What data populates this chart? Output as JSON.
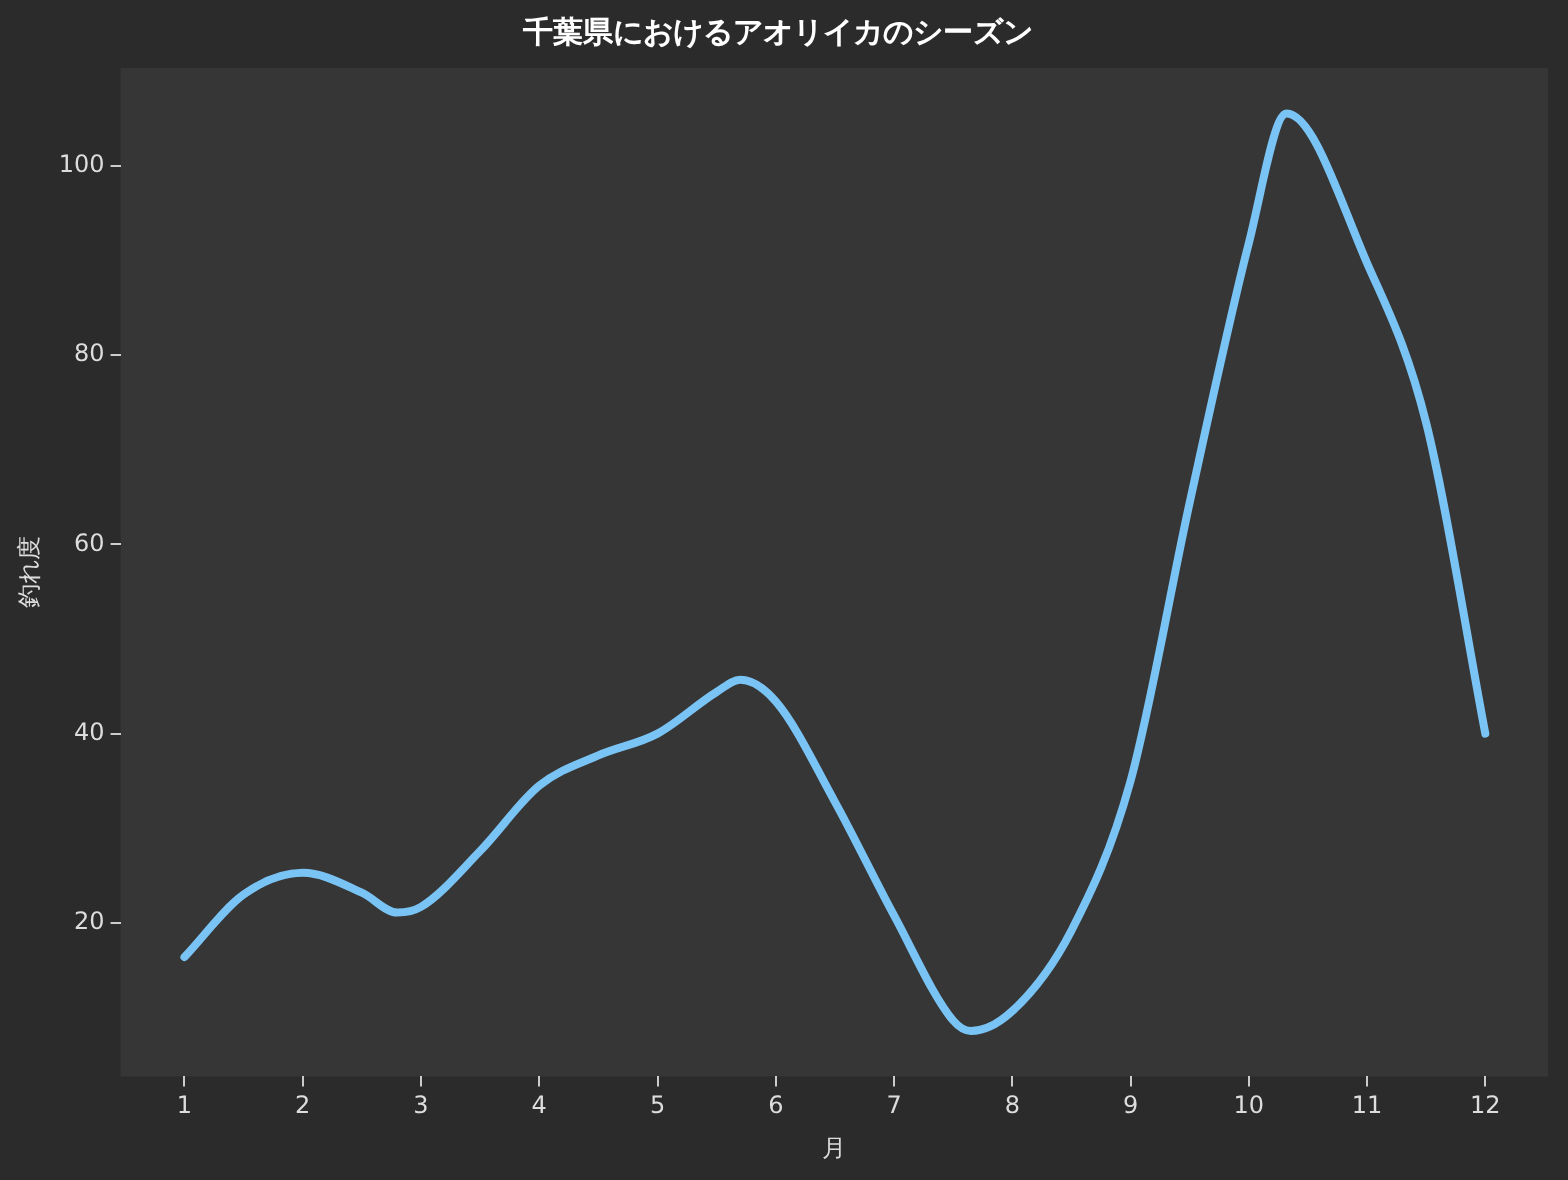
{
  "chart_data": {
    "type": "line",
    "title": "千葉県におけるアオリイカのシーズン",
    "xlabel": "月",
    "ylabel": "釣れ度",
    "x": [
      1,
      1.5,
      2,
      2.5,
      2.8,
      3,
      3.5,
      4,
      4.5,
      5,
      5.5,
      5.7,
      6,
      6.5,
      7,
      7.5,
      7.65,
      8,
      8.5,
      9,
      9.5,
      10,
      10.32,
      11,
      11.5,
      12
    ],
    "series": [
      {
        "color": "#7ac4f5",
        "values": [
          16.4,
          23,
          25.3,
          23.2,
          21.1,
          21.7,
          27.6,
          34.5,
          37.7,
          40,
          44.4,
          45.7,
          43.4,
          32.8,
          20.8,
          9.7,
          8.6,
          10.7,
          19.2,
          35,
          64.4,
          91.8,
          105.5,
          89.7,
          72.8,
          40
        ]
      }
    ],
    "xlim": [
      0.46,
      12.53
    ],
    "xticks": [
      1,
      2,
      3,
      4,
      5,
      6,
      7,
      8,
      9,
      10,
      11,
      12
    ],
    "ylim": [
      3.8,
      110.3
    ],
    "yticks": [
      20,
      40,
      60,
      80,
      100
    ],
    "grid": false,
    "legend": false,
    "marker": "none",
    "line_style": "solid"
  }
}
